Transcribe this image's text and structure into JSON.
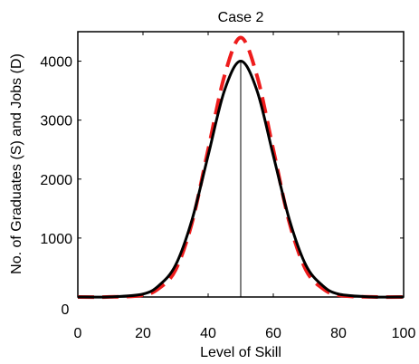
{
  "chart_data": {
    "type": "line",
    "title": "Case 2",
    "xlabel": "Level of Skill",
    "ylabel": "No. of Graduates (S) and Jobs (D)",
    "xlim": [
      0,
      100
    ],
    "ylim": [
      0,
      4500
    ],
    "xticks": [
      0,
      20,
      40,
      60,
      80,
      100
    ],
    "xtick_labels": [
      "0",
      "20",
      "40",
      "60",
      "80",
      "100"
    ],
    "yticks": [
      0,
      1000,
      2000,
      3000,
      4000
    ],
    "ytick_labels": [
      "0",
      "1000",
      "2000",
      "3000",
      "4000"
    ],
    "grid": false,
    "legend": "none",
    "vline_x": 50,
    "series": [
      {
        "color": "#000000",
        "style": "solid",
        "x": [
          0,
          10,
          20,
          25,
          30,
          35,
          40,
          45,
          50,
          55,
          60,
          65,
          70,
          75,
          80,
          90,
          100
        ],
        "y": [
          0,
          2,
          50,
          200,
          540,
          1300,
          2400,
          3500,
          4000,
          3500,
          2400,
          1300,
          540,
          200,
          50,
          2,
          0
        ]
      },
      {
        "color": "#ee1c1c",
        "style": "dashed",
        "x": [
          0,
          10,
          20,
          25,
          30,
          35,
          40,
          45,
          50,
          55,
          60,
          65,
          70,
          75,
          80,
          90,
          100
        ],
        "y": [
          0,
          1,
          30,
          150,
          460,
          1250,
          2500,
          3750,
          4400,
          3750,
          2500,
          1250,
          460,
          150,
          30,
          1,
          0
        ]
      }
    ]
  }
}
